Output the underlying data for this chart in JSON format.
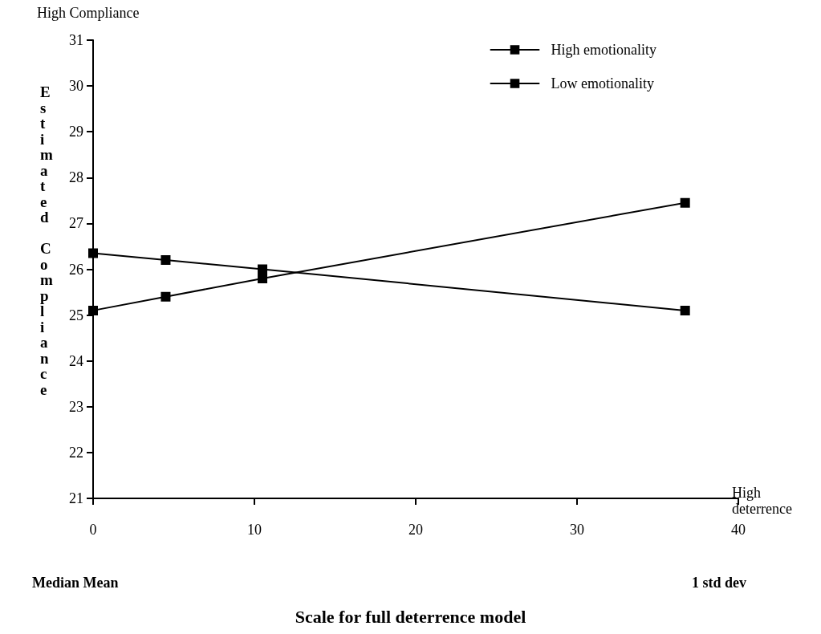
{
  "chart_data": {
    "type": "line",
    "xlabel": "Scale for full deterrence model",
    "ylabel": "Estimated Compliance",
    "annotations": [
      "High Compliance",
      "High deterrence",
      "Median Mean",
      "1 std dev"
    ],
    "x": [
      0,
      4.5,
      10.5,
      36.7
    ],
    "series": [
      {
        "name": "High emotionality",
        "color": "#000000",
        "values": [
          26.35,
          26.2,
          26.0,
          25.1
        ]
      },
      {
        "name": "Low emotionality",
        "color": "#000000",
        "values": [
          25.1,
          25.4,
          25.8,
          27.45
        ]
      }
    ],
    "xlim": [
      0,
      40
    ],
    "xticks": [
      0,
      10,
      20,
      30,
      40
    ],
    "ylim": [
      21,
      31
    ],
    "yticks": [
      21,
      22,
      23,
      24,
      25,
      26,
      27,
      28,
      29,
      30,
      31
    ],
    "grid": false,
    "legend": "top right",
    "marker": "square",
    "line_style": "solid"
  }
}
